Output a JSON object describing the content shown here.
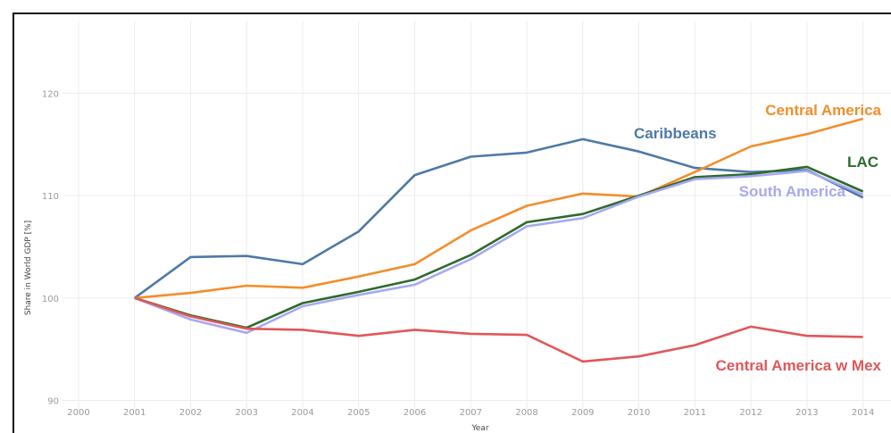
{
  "chart_data": {
    "type": "line",
    "xlabel": "Year",
    "ylabel": "Share in World GDP [%]",
    "x": [
      2001,
      2002,
      2003,
      2004,
      2005,
      2006,
      2007,
      2008,
      2009,
      2010,
      2011,
      2012,
      2013,
      2014
    ],
    "x_ticks": [
      "2000",
      "2001",
      "2002",
      "2003",
      "2004",
      "2005",
      "2006",
      "2007",
      "2008",
      "2009",
      "2010",
      "2011",
      "2012",
      "2013",
      "2014"
    ],
    "xlim": [
      2000,
      2014.5
    ],
    "ylim": [
      89,
      127
    ],
    "y_ticks": [
      90,
      100,
      110,
      120
    ],
    "grid": true,
    "series": [
      {
        "name": "Caribbeans",
        "color": "#4e79a7",
        "values": [
          100.0,
          104.0,
          104.1,
          103.3,
          106.5,
          112.0,
          113.8,
          114.2,
          115.5,
          114.3,
          112.7,
          112.3,
          112.5,
          109.8
        ]
      },
      {
        "name": "Central America",
        "color": "#f28e2b",
        "values": [
          100.0,
          100.5,
          101.2,
          101.0,
          102.1,
          103.3,
          106.6,
          109.0,
          110.2,
          109.9,
          112.3,
          114.8,
          116.0,
          117.5
        ]
      },
      {
        "name": "LAC",
        "color": "#2e6b2e",
        "values": [
          100.0,
          98.3,
          97.1,
          99.5,
          100.6,
          101.8,
          104.2,
          107.4,
          108.2,
          110.0,
          111.8,
          112.1,
          112.8,
          110.4
        ]
      },
      {
        "name": "South America",
        "color": "#a8a8f0",
        "values": [
          100.0,
          97.9,
          96.6,
          99.2,
          100.3,
          101.3,
          103.8,
          107.0,
          107.8,
          109.9,
          111.6,
          111.9,
          112.4,
          110.1
        ]
      },
      {
        "name": "Central America w Mex",
        "color": "#e15759",
        "values": [
          100.0,
          98.2,
          97.0,
          96.9,
          96.3,
          96.9,
          96.5,
          96.4,
          93.8,
          94.3,
          95.4,
          97.2,
          96.3,
          96.2
        ]
      }
    ]
  }
}
